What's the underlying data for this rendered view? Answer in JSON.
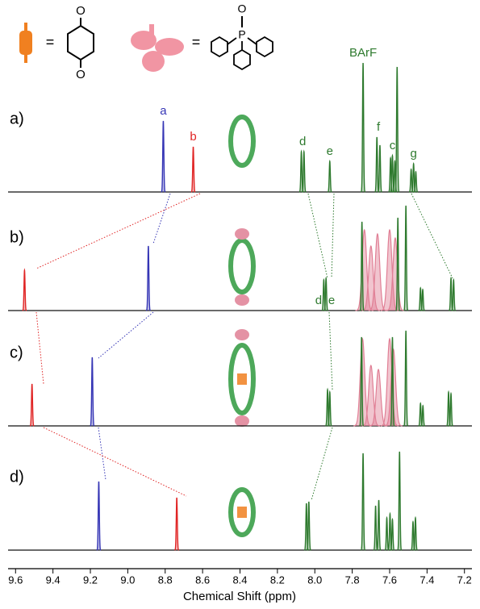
{
  "chart_data": {
    "type": "nmr",
    "xlabel": "Chemical Shift (ppm)",
    "xlim": [
      9.64,
      7.16
    ],
    "xticks": [
      9.6,
      9.4,
      9.2,
      {
        "value": 9,
        "label": "9.0"
      },
      8.8,
      8.6,
      8.4,
      8.2,
      {
        "value": 8,
        "label": "8.0"
      },
      7.8,
      7.6,
      7.4,
      7.2
    ],
    "structure_atoms": {
      "quinone": [
        "O",
        "O"
      ],
      "phosphine_oxide": [
        "O",
        "P"
      ],
      "equals": "="
    },
    "series": [
      {
        "name": "a)",
        "peaks": [
          8.81,
          8.65,
          8.072,
          8.058,
          7.92,
          7.742,
          7.668,
          7.652,
          7.595,
          7.585,
          7.572,
          7.56,
          7.485,
          7.472,
          7.46
        ],
        "heights": [
          88,
          56,
          50,
          50,
          38,
          160,
          68,
          58,
          42,
          45,
          38,
          155,
          28,
          35,
          25
        ],
        "colors": [
          "#3535b5",
          "#e02424",
          "#2e7a2e",
          "#2e7a2e",
          "#2e7a2e",
          "#2e7a2e",
          "#2e7a2e",
          "#2e7a2e",
          "#2e7a2e",
          "#2e7a2e",
          "#2e7a2e",
          "#2e7a2e",
          "#2e7a2e",
          "#2e7a2e",
          "#2e7a2e"
        ],
        "broad_peaks": [],
        "broad_heights": [],
        "annotations": [
          {
            "text": "a",
            "x": 8.81,
            "color": "#3535b5"
          },
          {
            "text": "b",
            "x": 8.65,
            "color": "#e02424"
          },
          {
            "text": "d",
            "x": 8.065,
            "color": "#2e7a2e"
          },
          {
            "text": "e",
            "x": 7.92,
            "color": "#2e7a2e"
          },
          {
            "text": "BArF",
            "x": 7.742,
            "color": "#2e7a2e"
          },
          {
            "text": "f",
            "x": 7.66,
            "color": "#2e7a2e"
          },
          {
            "text": "c",
            "x": 7.585,
            "color": "#2e7a2e"
          },
          {
            "text": "g",
            "x": 7.472,
            "color": "#2e7a2e"
          }
        ]
      },
      {
        "name": "b)",
        "peaks": [
          9.552,
          8.89,
          7.952,
          7.94,
          7.748,
          7.556,
          7.513,
          7.435,
          7.423,
          7.272,
          7.258
        ],
        "heights": [
          50,
          80,
          38,
          40,
          110,
          115,
          130,
          28,
          26,
          40,
          38
        ],
        "colors": [
          "#e02424",
          "#3535b5",
          "#2e7a2e",
          "#2e7a2e",
          "#2e7a2e",
          "#2e7a2e",
          "#2e7a2e",
          "#2e7a2e",
          "#2e7a2e",
          "#2e7a2e",
          "#2e7a2e"
        ],
        "broad_peaks": [
          7.735,
          7.7,
          7.665,
          7.6,
          7.57
        ],
        "broad_heights": [
          100,
          80,
          95,
          100,
          90
        ],
        "annotations": [
          {
            "text": "d",
            "x": 7.98,
            "color": "#2e7a2e"
          },
          {
            "text": "e",
            "x": 7.91,
            "color": "#2e7a2e"
          }
        ]
      },
      {
        "name": "c)",
        "peaks": [
          9.512,
          9.19,
          7.932,
          7.92,
          7.75,
          7.585,
          7.513,
          7.435,
          7.422,
          7.285,
          7.272
        ],
        "heights": [
          52,
          85,
          45,
          42,
          110,
          110,
          118,
          28,
          25,
          42,
          40
        ],
        "colors": [
          "#e02424",
          "#3535b5",
          "#2e7a2e",
          "#2e7a2e",
          "#2e7a2e",
          "#2e7a2e",
          "#2e7a2e",
          "#2e7a2e",
          "#2e7a2e",
          "#2e7a2e",
          "#2e7a2e"
        ],
        "broad_peaks": [
          7.745,
          7.7,
          7.66,
          7.6,
          7.58
        ],
        "broad_heights": [
          108,
          75,
          70,
          108,
          95
        ],
        "annotations": []
      },
      {
        "name": "d)",
        "peaks": [
          9.155,
          8.738,
          8.045,
          8.032,
          7.742,
          7.675,
          7.658,
          7.615,
          7.598,
          7.585,
          7.547,
          7.475,
          7.462
        ],
        "heights": [
          85,
          65,
          58,
          60,
          120,
          55,
          62,
          40,
          45,
          38,
          122,
          35,
          40
        ],
        "colors": [
          "#3535b5",
          "#e02424",
          "#2e7a2e",
          "#2e7a2e",
          "#2e7a2e",
          "#2e7a2e",
          "#2e7a2e",
          "#2e7a2e",
          "#2e7a2e",
          "#2e7a2e",
          "#2e7a2e",
          "#2e7a2e",
          "#2e7a2e"
        ],
        "broad_peaks": [],
        "broad_heights": [],
        "annotations": []
      }
    ],
    "broad_color": "#e07f95"
  }
}
